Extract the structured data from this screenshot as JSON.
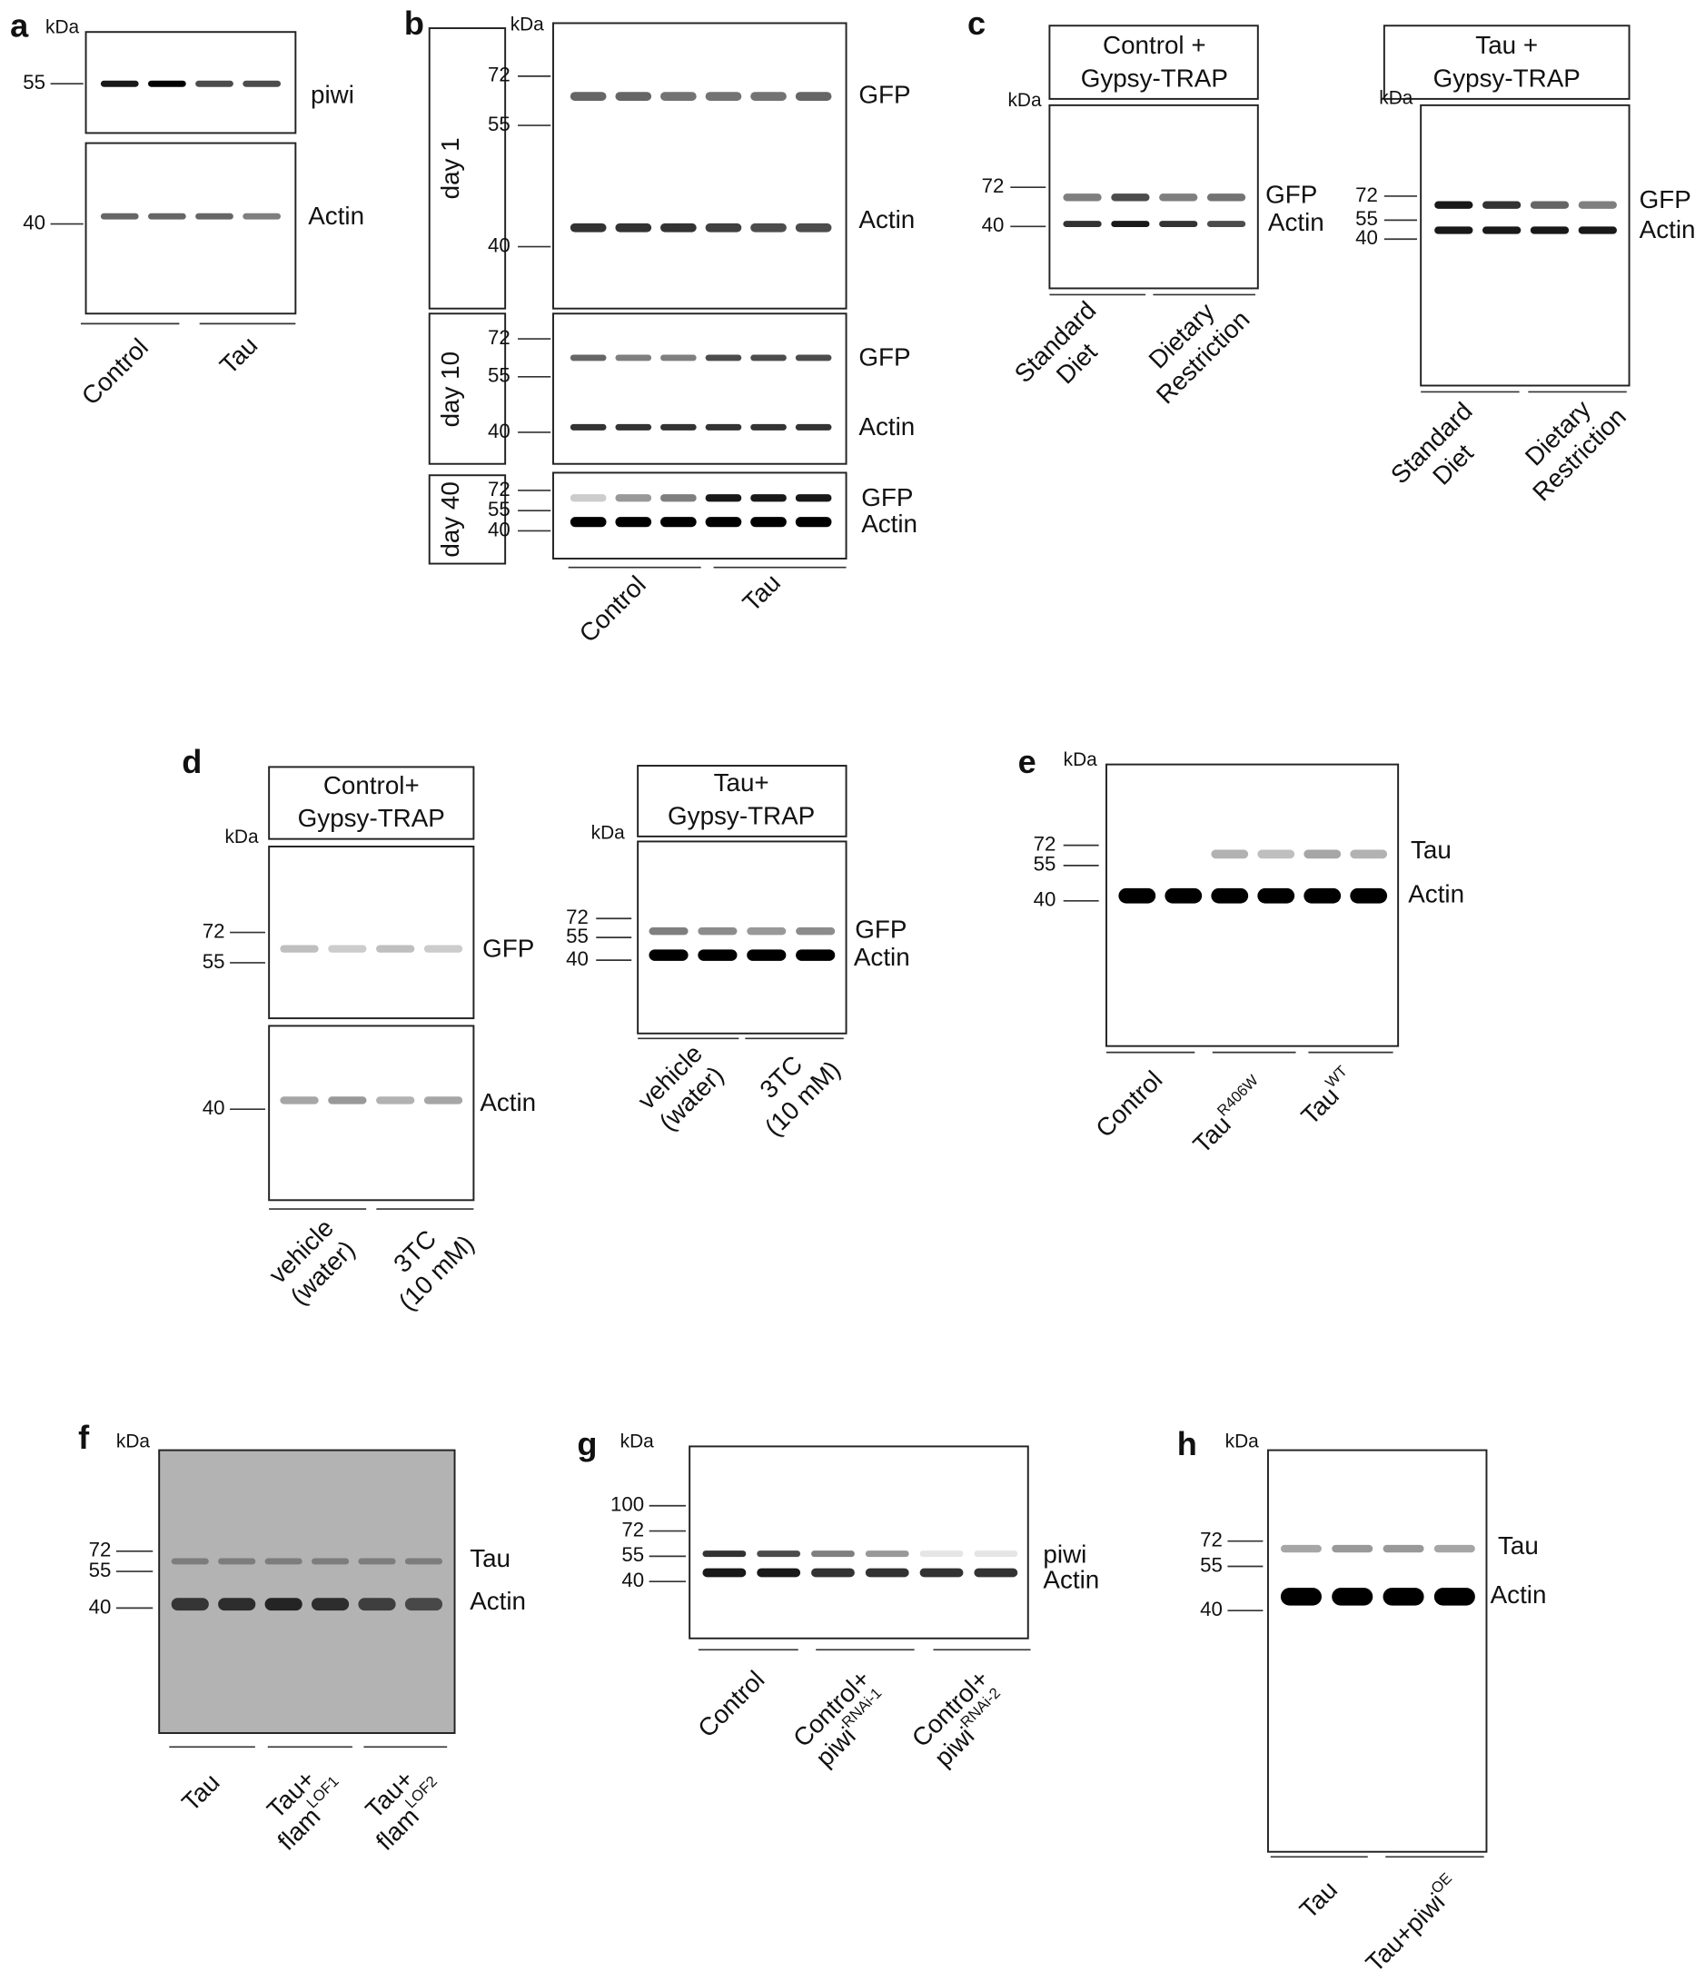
{
  "panels": [
    {
      "label": "a",
      "gels": [
        {
          "kda": "kDa",
          "markers": [
            55,
            40
          ],
          "blots": [
            "piwi",
            "Actin"
          ],
          "groups": [
            [
              "Control"
            ],
            [
              "Tau"
            ]
          ]
        }
      ]
    },
    {
      "label": "b",
      "gels": [
        {
          "kda": "kDa",
          "rows": [
            {
              "day": "day 1",
              "markers": [
                72,
                55,
                40
              ],
              "blots": [
                "GFP",
                "Actin"
              ]
            },
            {
              "day": "day 10",
              "markers": [
                72,
                55,
                40
              ],
              "blots": [
                "GFP",
                "Actin"
              ]
            },
            {
              "day": "day 40",
              "markers": [
                72,
                55,
                40
              ],
              "blots": [
                "GFP",
                "Actin"
              ]
            }
          ],
          "groups": [
            [
              "Control"
            ],
            [
              "Tau"
            ]
          ]
        }
      ]
    },
    {
      "label": "c",
      "gels": [
        {
          "title": [
            "Control +",
            "Gypsy-TRAP"
          ],
          "kda": "kDa",
          "markers": [
            72,
            40
          ],
          "blots": [
            "GFP",
            "Actin"
          ],
          "groups": [
            [
              "Standard",
              "Diet"
            ],
            [
              "Dietary",
              "Restriction"
            ]
          ]
        },
        {
          "title": [
            "Tau +",
            "Gypsy-TRAP"
          ],
          "kda": "kDa",
          "markers": [
            72,
            55,
            40
          ],
          "blots": [
            "GFP",
            "Actin"
          ],
          "groups": [
            [
              "Standard",
              "Diet"
            ],
            [
              "Dietary",
              "Restriction"
            ]
          ]
        }
      ]
    },
    {
      "label": "d",
      "gels": [
        {
          "title": [
            "Control+",
            "Gypsy-TRAP"
          ],
          "kda": "kDa",
          "markers": [
            72,
            55,
            40
          ],
          "blots": [
            "GFP",
            "Actin"
          ],
          "groups": [
            [
              "vehicle",
              "(water)"
            ],
            [
              "3TC",
              "(10 mM)"
            ]
          ]
        },
        {
          "title": [
            "Tau+",
            "Gypsy-TRAP"
          ],
          "kda": "kDa",
          "markers": [
            72,
            55,
            40
          ],
          "blots": [
            "GFP",
            "Actin"
          ],
          "groups": [
            [
              "vehicle",
              "(water)"
            ],
            [
              "3TC",
              "(10 mM)"
            ]
          ]
        }
      ]
    },
    {
      "label": "e",
      "gels": [
        {
          "kda": "kDa",
          "markers": [
            72,
            55,
            40
          ],
          "blots": [
            "Tau",
            "Actin"
          ],
          "groups": [
            [
              "Control"
            ],
            [
              {
                "text": "Tau",
                "sup": "R406W"
              }
            ],
            [
              {
                "text": "Tau",
                "sup": "WT"
              }
            ]
          ]
        }
      ]
    },
    {
      "label": "f",
      "gels": [
        {
          "kda": "kDa",
          "markers": [
            72,
            55,
            40
          ],
          "blots": [
            "Tau",
            "Actin"
          ],
          "groups": [
            [
              "Tau"
            ],
            [
              "Tau+",
              {
                "text": "flam",
                "sup": "LOF1"
              }
            ],
            [
              "Tau+",
              {
                "text": "flam",
                "sup": "LOF2"
              }
            ]
          ]
        }
      ]
    },
    {
      "label": "g",
      "gels": [
        {
          "kda": "kDa",
          "markers": [
            100,
            72,
            55,
            40
          ],
          "blots": [
            "piwi",
            "Actin"
          ],
          "groups": [
            [
              "Control"
            ],
            [
              "Control+",
              {
                "text": "piwi",
                "sup": "RNAi-1"
              }
            ],
            [
              "Control+",
              {
                "text": "piwi",
                "sup": "RNAi-2"
              }
            ]
          ]
        }
      ]
    },
    {
      "label": "h",
      "gels": [
        {
          "kda": "kDa",
          "markers": [
            72,
            55,
            40
          ],
          "blots": [
            "Tau",
            "Actin"
          ],
          "groups": [
            [
              "Tau"
            ],
            [
              {
                "text": "Tau+piwi",
                "sup": "OE"
              }
            ]
          ]
        }
      ]
    }
  ]
}
